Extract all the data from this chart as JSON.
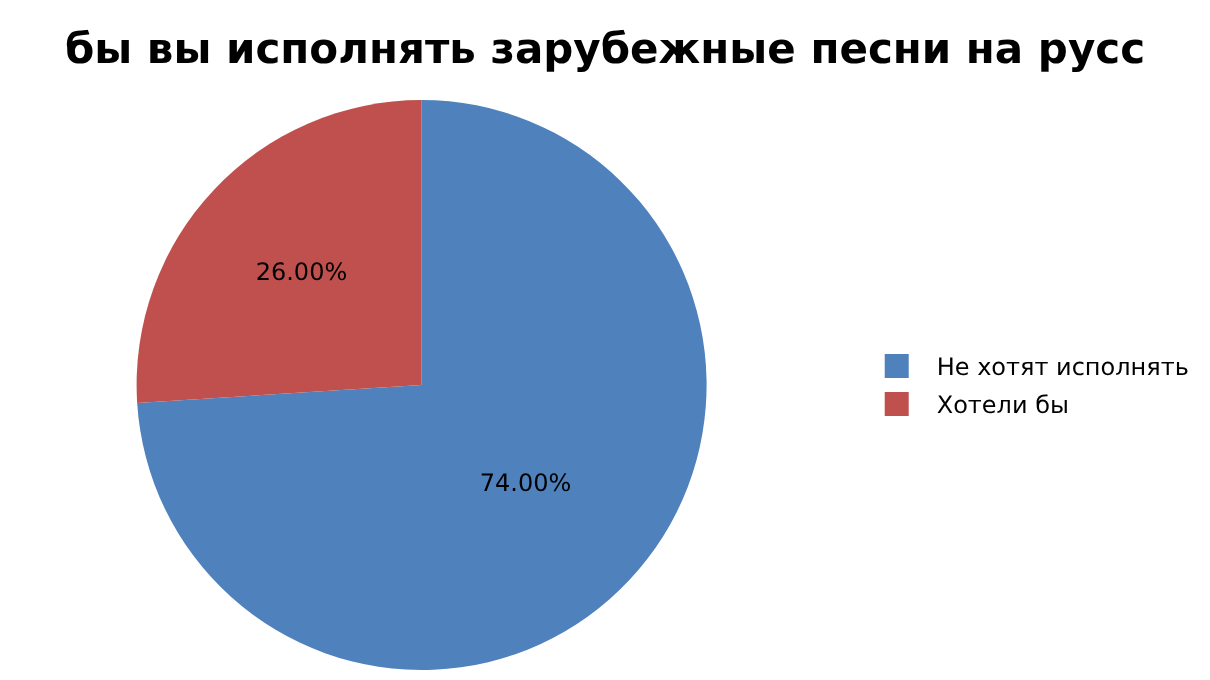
{
  "chart_data": {
    "type": "pie",
    "title": "бы вы исполнять зарубежные песни на русс",
    "categories": [
      "Не хотят исполнять",
      "Хотели бы"
    ],
    "values": [
      74,
      26
    ],
    "value_labels": [
      "74.00%",
      "26.00%"
    ],
    "colors": [
      "#4f81bd",
      "#c0504d"
    ],
    "legend": "right"
  }
}
